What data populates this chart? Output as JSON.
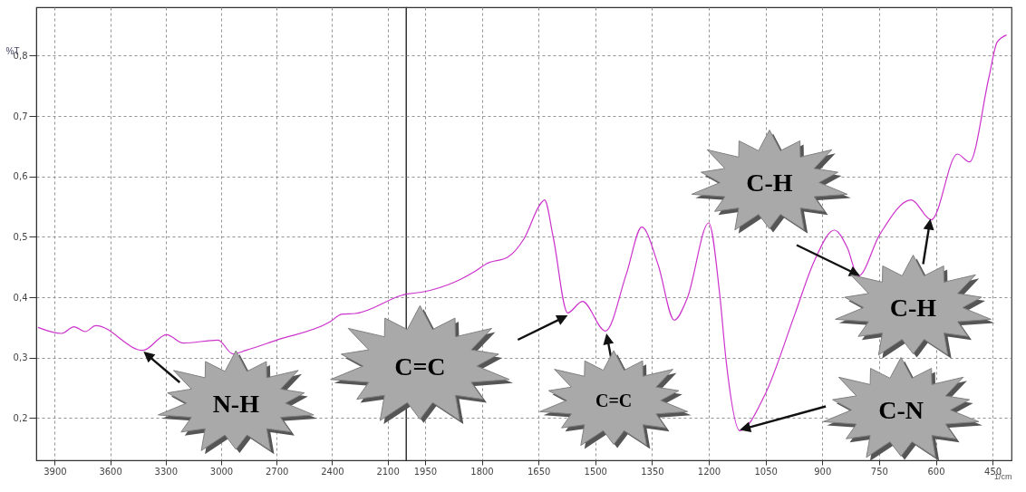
{
  "chart_data": [
    {
      "type": "line",
      "ylabel": "%T",
      "xlim": [
        4000,
        2000
      ],
      "xticks": [
        3900,
        3600,
        3300,
        3000,
        2700,
        2400,
        2100
      ],
      "ylim": [
        0.13,
        0.88
      ],
      "yticks": [
        {
          "value": 0.2,
          "label": "0,2"
        },
        {
          "value": 0.3,
          "label": "0,3"
        },
        {
          "value": 0.4,
          "label": "0,4"
        },
        {
          "value": 0.5,
          "label": "0,5"
        },
        {
          "value": 0.6,
          "label": "0,6"
        },
        {
          "value": 0.7,
          "label": "0,7"
        },
        {
          "value": 0.8,
          "label": "0,8"
        }
      ],
      "grid": true,
      "series": [
        {
          "color": "#cc33cc",
          "x": [
            3990,
            3862,
            3796,
            3735,
            3678,
            3423,
            3295,
            3205,
            3017,
            2936,
            2866,
            2700,
            2412,
            2346,
            2275,
            2024,
            2000
          ],
          "values": [
            0.35,
            0.34,
            0.351,
            0.343,
            0.353,
            0.312,
            0.338,
            0.324,
            0.329,
            0.306,
            0.312,
            0.329,
            0.359,
            0.372,
            0.373,
            0.403,
            0.405
          ]
        }
      ],
      "annotations": [
        "N-H"
      ]
    },
    {
      "type": "line",
      "xlabel": "1/cm",
      "xlim": [
        2000,
        400
      ],
      "xticks": [
        1950,
        1800,
        1650,
        1500,
        1350,
        1200,
        1050,
        900,
        750,
        600,
        450
      ],
      "ylim": [
        0.13,
        0.88
      ],
      "yticks": [
        0.2,
        0.3,
        0.4,
        0.5,
        0.6,
        0.7,
        0.8
      ],
      "tick_labels": "x",
      "grid": true,
      "series": [
        {
          "color": "#cc33cc",
          "x": [
            2000,
            1932,
            1817,
            1786,
            1732,
            1689,
            1643,
            1634,
            1611,
            1573,
            1534,
            1473,
            1418,
            1377,
            1334,
            1291,
            1257,
            1200,
            1171,
            1154,
            1118,
            1052,
            973,
            921,
            868,
            834,
            805,
            748,
            665,
            612,
            543,
            511,
            460,
            438,
            413
          ],
          "values": [
            0.405,
            0.412,
            0.443,
            0.456,
            0.466,
            0.496,
            0.556,
            0.561,
            0.499,
            0.374,
            0.393,
            0.344,
            0.438,
            0.516,
            0.454,
            0.362,
            0.398,
            0.523,
            0.404,
            0.294,
            0.179,
            0.238,
            0.371,
            0.46,
            0.511,
            0.482,
            0.435,
            0.504,
            0.561,
            0.528,
            0.637,
            0.624,
            0.763,
            0.822,
            0.834
          ]
        }
      ],
      "annotations": [
        "C=C",
        "C=C",
        "C-H",
        "C-H",
        "C-N"
      ]
    }
  ]
}
